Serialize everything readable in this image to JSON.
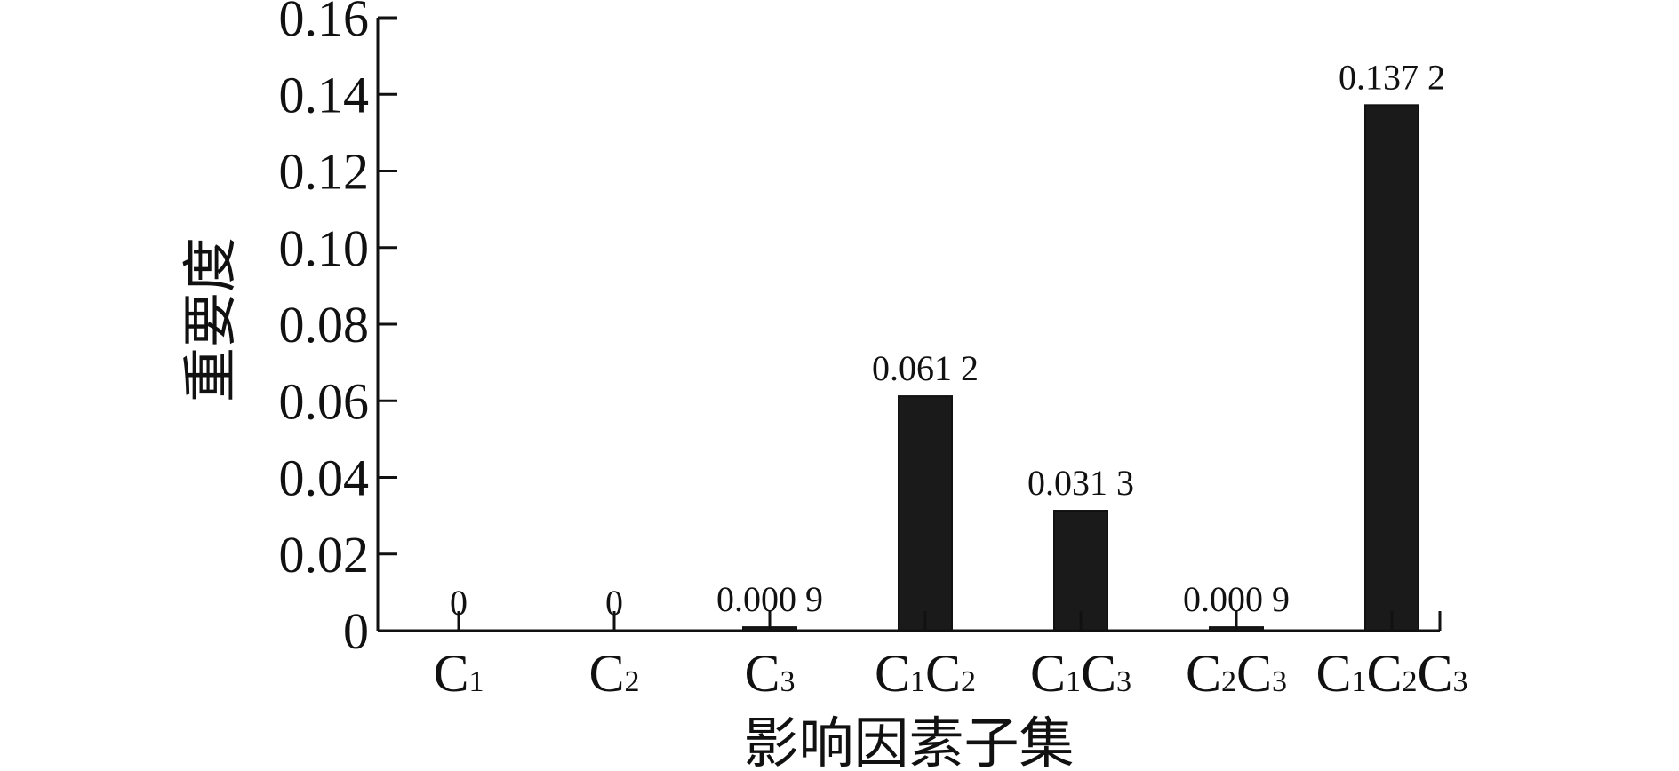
{
  "chart_data": {
    "type": "bar",
    "title": "",
    "xlabel": "影响因素子集",
    "ylabel": "重要度",
    "ylim": [
      0,
      0.16
    ],
    "yticks": [
      "0",
      "0.02",
      "0.04",
      "0.06",
      "0.08",
      "0.10",
      "0.12",
      "0.14",
      "0.16"
    ],
    "categories": [
      "C1",
      "C2",
      "C3",
      "C1C2",
      "C1C3",
      "C2C3",
      "C1C2C3"
    ],
    "category_labels": [
      [
        {
          "base": "C",
          "sub": "1"
        }
      ],
      [
        {
          "base": "C",
          "sub": "2"
        }
      ],
      [
        {
          "base": "C",
          "sub": "3"
        }
      ],
      [
        {
          "base": "C",
          "sub": "1"
        },
        {
          "base": "C",
          "sub": "2"
        }
      ],
      [
        {
          "base": "C",
          "sub": "1"
        },
        {
          "base": "C",
          "sub": "3"
        }
      ],
      [
        {
          "base": "C",
          "sub": "2"
        },
        {
          "base": "C",
          "sub": "3"
        }
      ],
      [
        {
          "base": "C",
          "sub": "1"
        },
        {
          "base": "C",
          "sub": "2"
        },
        {
          "base": "C",
          "sub": "3"
        }
      ]
    ],
    "values": [
      0,
      0,
      0.0009,
      0.0612,
      0.0313,
      0.0009,
      0.1372
    ],
    "value_labels": [
      "0",
      "0",
      "0.000 9",
      "0.061 2",
      "0.031 3",
      "0.000 9",
      "0.137 2"
    ],
    "grid": false,
    "legend": "none",
    "bar_color": "#1a1a1a"
  }
}
